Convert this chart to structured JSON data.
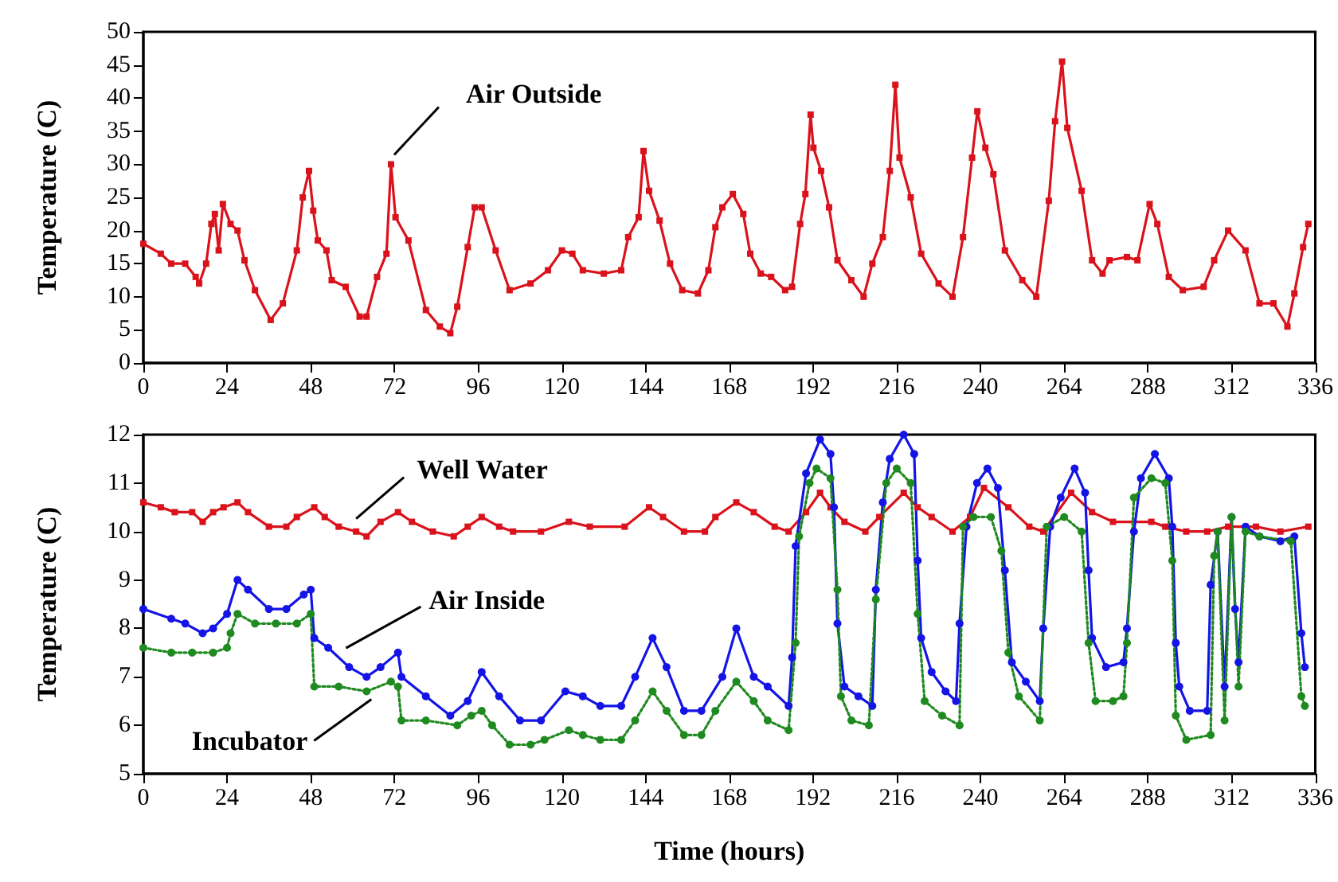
{
  "chart_data": [
    {
      "type": "line",
      "ylabel": "Temperature (C)",
      "xlim": [
        0,
        336
      ],
      "xticks": [
        0,
        24,
        48,
        72,
        96,
        120,
        144,
        168,
        192,
        216,
        240,
        264,
        288,
        312,
        336
      ],
      "ylim": [
        0,
        50
      ],
      "yticks": [
        0,
        5,
        10,
        15,
        20,
        25,
        30,
        35,
        40,
        45,
        50
      ],
      "grid": false,
      "marker": "square",
      "line_style": "solid",
      "series": [
        {
          "name": "Air Outside",
          "color": "#d9121b",
          "x": [
            0,
            5,
            8,
            12,
            15,
            16,
            18,
            19.5,
            20.5,
            21.6,
            22.8,
            25,
            27,
            29,
            32,
            36.5,
            40,
            44,
            45.7,
            47.5,
            48.7,
            50,
            52.5,
            54,
            58,
            62,
            64,
            67,
            69.7,
            71,
            72.3,
            76,
            81,
            85,
            88,
            90,
            93,
            95,
            97,
            101,
            105,
            111,
            116,
            120,
            123,
            126,
            132,
            137,
            139,
            142,
            143.4,
            145,
            148,
            151,
            154.5,
            159,
            162,
            164,
            166,
            169,
            172,
            174,
            177,
            180,
            184,
            186,
            188.3,
            189.8,
            191.3,
            192.1,
            194.3,
            196.6,
            199,
            203,
            206.5,
            209,
            212,
            214,
            215.6,
            216.8,
            220,
            223,
            228,
            232,
            235,
            237.6,
            239.1,
            241.4,
            243.7,
            247,
            252,
            256,
            259.6,
            261.4,
            263.4,
            264.9,
            269,
            272,
            275,
            277,
            282,
            285,
            288.5,
            290.7,
            294,
            298,
            304,
            307,
            311,
            316,
            320,
            324,
            328,
            330,
            332.5,
            334
          ],
          "values": [
            18,
            16.5,
            15,
            15,
            13,
            12,
            15,
            21,
            22.5,
            17,
            24,
            21,
            20,
            15.5,
            11,
            6.5,
            9,
            17,
            25,
            29,
            23,
            18.5,
            17,
            12.5,
            11.5,
            7,
            7,
            13,
            16.5,
            30,
            22,
            18.5,
            8,
            5.5,
            4.5,
            8.5,
            17.5,
            23.5,
            23.5,
            17,
            11,
            12,
            14,
            17,
            16.5,
            14,
            13.5,
            14,
            19,
            22,
            32,
            26,
            21.5,
            15,
            11,
            10.5,
            14,
            20.5,
            23.5,
            25.5,
            22.5,
            16.5,
            13.5,
            13,
            11,
            11.5,
            21,
            25.5,
            37.5,
            32.5,
            29,
            23.5,
            15.5,
            12.5,
            10,
            15,
            19,
            29,
            42,
            31,
            25,
            16.5,
            12,
            10,
            19,
            31,
            38,
            32.5,
            28.5,
            17,
            12.5,
            10,
            24.5,
            36.5,
            45.5,
            35.5,
            26,
            15.5,
            13.5,
            15.5,
            16,
            15.5,
            24,
            21,
            13,
            11,
            11.5,
            15.5,
            20,
            17,
            9,
            9,
            5.5,
            10.5,
            17.5,
            21
          ]
        }
      ]
    },
    {
      "type": "line",
      "xlabel": "Time (hours)",
      "ylabel": "Temperature (C)",
      "xlim": [
        0,
        336
      ],
      "xticks": [
        0,
        24,
        48,
        72,
        96,
        120,
        144,
        168,
        192,
        216,
        240,
        264,
        288,
        312,
        336
      ],
      "ylim": [
        5,
        12
      ],
      "yticks": [
        5,
        6,
        7,
        8,
        9,
        10,
        11,
        12
      ],
      "grid": false,
      "series": [
        {
          "name": "Well Water",
          "color": "#d9121b",
          "marker": "square",
          "line_style": "solid",
          "x": [
            0,
            5,
            9,
            14,
            17,
            20,
            23,
            27,
            30,
            36,
            41,
            44,
            49,
            52,
            56,
            61,
            64,
            68,
            73,
            77,
            83,
            89,
            93,
            97,
            102,
            106,
            114,
            122,
            128,
            138,
            145,
            149,
            155,
            161,
            164,
            170,
            175,
            181,
            185,
            190,
            194,
            197,
            201,
            207,
            211,
            218,
            222,
            226,
            232,
            237,
            241,
            248,
            254,
            258,
            266,
            272,
            278,
            289,
            293,
            299,
            305,
            311,
            319,
            326,
            334
          ],
          "values": [
            10.6,
            10.5,
            10.4,
            10.4,
            10.2,
            10.4,
            10.5,
            10.6,
            10.4,
            10.1,
            10.1,
            10.3,
            10.5,
            10.3,
            10.1,
            10,
            9.9,
            10.2,
            10.4,
            10.2,
            10,
            9.9,
            10.1,
            10.3,
            10.1,
            10,
            10,
            10.2,
            10.1,
            10.1,
            10.5,
            10.3,
            10,
            10,
            10.3,
            10.6,
            10.4,
            10.1,
            10,
            10.4,
            10.8,
            10.5,
            10.2,
            10,
            10.3,
            10.8,
            10.5,
            10.3,
            10,
            10.3,
            10.9,
            10.5,
            10.1,
            10,
            10.8,
            10.4,
            10.2,
            10.2,
            10.1,
            10,
            10,
            10.1,
            10.1,
            10,
            10.1
          ]
        },
        {
          "name": "Air Inside",
          "color": "#1414e6",
          "marker": "circle",
          "line_style": "solid",
          "x": [
            0,
            8,
            12,
            17,
            20,
            24,
            27,
            30,
            36,
            41,
            46,
            48,
            49,
            53,
            59,
            64,
            68,
            73,
            74,
            81,
            88,
            93,
            97,
            102,
            108,
            114,
            121,
            126,
            131,
            137,
            141,
            146,
            150,
            155,
            160,
            166,
            170,
            175,
            179,
            185,
            186,
            187,
            190,
            194,
            197,
            198,
            199,
            201,
            205,
            209,
            210,
            212,
            214,
            218,
            221,
            222,
            223,
            226,
            230,
            233,
            234,
            236,
            239,
            242,
            245,
            247,
            249,
            253,
            257,
            258,
            260,
            263,
            267,
            270,
            271,
            272,
            276,
            281,
            282,
            284,
            286,
            290,
            294,
            295,
            296,
            297,
            300,
            305,
            306,
            308,
            310,
            312,
            313,
            314,
            316,
            320,
            326,
            330,
            332,
            333
          ],
          "values": [
            8.4,
            8.2,
            8.1,
            7.9,
            8,
            8.3,
            9,
            8.8,
            8.4,
            8.4,
            8.7,
            8.8,
            7.8,
            7.6,
            7.2,
            7,
            7.2,
            7.5,
            7,
            6.6,
            6.2,
            6.5,
            7.1,
            6.6,
            6.1,
            6.1,
            6.7,
            6.6,
            6.4,
            6.4,
            7,
            7.8,
            7.2,
            6.3,
            6.3,
            7,
            8,
            7,
            6.8,
            6.4,
            7.4,
            9.7,
            11.2,
            11.9,
            11.6,
            10.5,
            8.1,
            6.8,
            6.6,
            6.4,
            8.8,
            10.6,
            11.5,
            12,
            11.6,
            9.4,
            7.8,
            7.1,
            6.7,
            6.5,
            8.1,
            10.1,
            11,
            11.3,
            10.9,
            9.2,
            7.3,
            6.9,
            6.5,
            8,
            10.1,
            10.7,
            11.3,
            10.8,
            9.2,
            7.8,
            7.2,
            7.3,
            8,
            10,
            11.1,
            11.6,
            11.1,
            10.1,
            7.7,
            6.8,
            6.3,
            6.3,
            8.9,
            10,
            6.8,
            10.3,
            8.4,
            7.3,
            10.1,
            9.9,
            9.8,
            9.9,
            7.9,
            7.2
          ]
        },
        {
          "name": "Incubator",
          "color": "#1f8a1f",
          "marker": "circle",
          "line_style": "dotted",
          "x": [
            0,
            8,
            14,
            20,
            24,
            25,
            27,
            32,
            38,
            44,
            48,
            49,
            56,
            64,
            71,
            73,
            74,
            81,
            90,
            94,
            97,
            100,
            105,
            111,
            115,
            122,
            126,
            131,
            137,
            141,
            146,
            150,
            155,
            160,
            164,
            170,
            175,
            179,
            185,
            187,
            188,
            191,
            193,
            197,
            199,
            200,
            203,
            208,
            210,
            213,
            216,
            220,
            222,
            224,
            229,
            234,
            235,
            238,
            243,
            246,
            248,
            251,
            257,
            259,
            264,
            269,
            271,
            273,
            278,
            281,
            282,
            284,
            289,
            293,
            295,
            296,
            299,
            306,
            307,
            308,
            310,
            312,
            314,
            316,
            320,
            329,
            332,
            333
          ],
          "values": [
            7.6,
            7.5,
            7.5,
            7.5,
            7.6,
            7.9,
            8.3,
            8.1,
            8.1,
            8.1,
            8.3,
            6.8,
            6.8,
            6.7,
            6.9,
            6.8,
            6.1,
            6.1,
            6,
            6.2,
            6.3,
            6,
            5.6,
            5.6,
            5.7,
            5.9,
            5.8,
            5.7,
            5.7,
            6.1,
            6.7,
            6.3,
            5.8,
            5.8,
            6.3,
            6.9,
            6.5,
            6.1,
            5.9,
            7.7,
            9.9,
            11,
            11.3,
            11.1,
            8.8,
            6.6,
            6.1,
            6,
            8.6,
            11,
            11.3,
            11,
            8.3,
            6.5,
            6.2,
            6,
            10.1,
            10.3,
            10.3,
            9.6,
            7.5,
            6.6,
            6.1,
            10.1,
            10.3,
            10,
            7.7,
            6.5,
            6.5,
            6.6,
            7.7,
            10.7,
            11.1,
            11,
            9.4,
            6.2,
            5.7,
            5.8,
            9.5,
            10,
            6.1,
            10.3,
            6.8,
            10,
            9.9,
            9.8,
            6.6,
            6.4
          ]
        }
      ]
    }
  ]
}
